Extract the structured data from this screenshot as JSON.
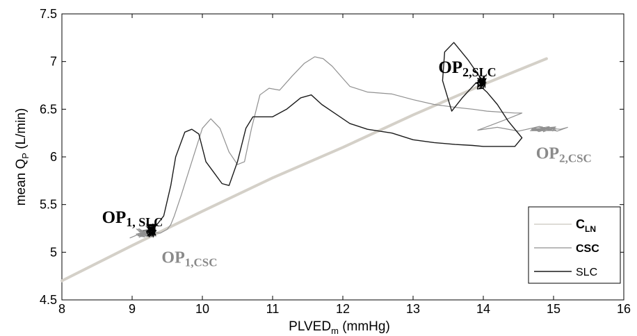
{
  "chart_data": {
    "type": "line",
    "xlabel": "PLVEDm (mmHg)",
    "xlabel_main": "PLVED",
    "xlabel_sub": "m",
    "xlabel_unit": " (mmHg)",
    "ylabel": "mean QP (L/min)",
    "ylabel_main": "mean Q",
    "ylabel_sub": "P",
    "ylabel_unit": " (L/min)",
    "xlim": [
      8,
      16
    ],
    "ylim": [
      4.5,
      7.5
    ],
    "x_ticks": [
      "8",
      "9",
      "10",
      "11",
      "12",
      "13",
      "14",
      "15",
      "16"
    ],
    "y_ticks": [
      "4.5",
      "5",
      "5.5",
      "6",
      "6.5",
      "7",
      "7.5"
    ],
    "grid": false,
    "legend_position": "bottom-right",
    "series": [
      {
        "name": "CLN",
        "name_main": "C",
        "name_sub": "LN",
        "color": "#d4d0c8",
        "x": [
          8,
          9,
          10,
          11,
          12,
          13,
          14,
          14.9
        ],
        "y": [
          4.7,
          5.07,
          5.43,
          5.78,
          6.1,
          6.44,
          6.76,
          7.03
        ]
      },
      {
        "name": "CSC",
        "color": "#909090",
        "x": [
          8.97,
          9.1,
          9.25,
          9.4,
          9.5,
          9.55,
          9.6,
          9.7,
          9.85,
          10.0,
          10.12,
          10.25,
          10.38,
          10.5,
          10.6,
          10.7,
          10.82,
          10.95,
          11.1,
          11.28,
          11.45,
          11.6,
          11.72,
          11.85,
          11.98,
          12.1,
          12.35,
          12.7,
          13.0,
          13.3,
          13.6,
          13.85,
          14.05,
          14.25,
          14.45,
          14.55,
          14.35,
          14.1,
          13.92,
          14.2,
          14.5,
          14.8,
          15.05,
          15.2,
          15.1,
          14.9,
          14.7
        ],
        "y": [
          5.15,
          5.19,
          5.21,
          5.2,
          5.24,
          5.29,
          5.38,
          5.6,
          5.95,
          6.3,
          6.4,
          6.3,
          6.05,
          5.92,
          5.95,
          6.3,
          6.65,
          6.72,
          6.7,
          6.85,
          6.98,
          7.05,
          7.03,
          6.95,
          6.84,
          6.74,
          6.68,
          6.66,
          6.6,
          6.55,
          6.52,
          6.5,
          6.48,
          6.47,
          6.46,
          6.46,
          6.4,
          6.33,
          6.28,
          6.31,
          6.27,
          6.32,
          6.27,
          6.31,
          6.29,
          6.3,
          6.28
        ]
      },
      {
        "name": "SLC",
        "color": "#1a1a1a",
        "x": [
          9.1,
          9.3,
          9.45,
          9.55,
          9.62,
          9.75,
          9.85,
          9.95,
          10.05,
          10.18,
          10.28,
          10.38,
          10.5,
          10.62,
          10.72,
          10.85,
          11.0,
          11.2,
          11.4,
          11.55,
          11.7,
          11.9,
          12.1,
          12.35,
          12.7,
          13.0,
          13.3,
          13.6,
          13.85,
          14.0,
          14.2,
          14.45,
          14.55,
          14.35,
          14.2,
          14.05,
          13.9,
          13.7,
          13.55,
          13.42,
          13.45,
          13.58,
          13.78,
          13.95,
          14.0
        ],
        "y": [
          5.22,
          5.24,
          5.38,
          5.7,
          6.0,
          6.26,
          6.29,
          6.24,
          5.95,
          5.82,
          5.72,
          5.7,
          5.95,
          6.3,
          6.42,
          6.42,
          6.42,
          6.5,
          6.62,
          6.65,
          6.55,
          6.45,
          6.35,
          6.29,
          6.25,
          6.18,
          6.15,
          6.13,
          6.12,
          6.11,
          6.11,
          6.11,
          6.2,
          6.38,
          6.55,
          6.68,
          6.78,
          6.62,
          6.48,
          6.8,
          7.1,
          7.2,
          7.02,
          6.84,
          6.78
        ]
      }
    ],
    "annotations": [
      {
        "main": "OP",
        "sub": "1, SLC",
        "x": 8.57,
        "y": 5.31,
        "color": "#000000",
        "size": 25,
        "sub_size": 18
      },
      {
        "main": "OP",
        "sub": "1,CSC",
        "x": 9.42,
        "y": 4.89,
        "color": "#8a8a8a",
        "size": 24,
        "sub_size": 17
      },
      {
        "main": "OP",
        "sub": "2,SLC",
        "x": 13.36,
        "y": 6.88,
        "color": "#000000",
        "size": 25,
        "sub_size": 18
      },
      {
        "main": "OP",
        "sub": "2,CSC",
        "x": 14.75,
        "y": 5.98,
        "color": "#8a8a8a",
        "size": 24,
        "sub_size": 17
      }
    ],
    "operating_points": [
      {
        "name": "OP1,SLC",
        "x": 9.27,
        "y": 5.23,
        "color": "#000000"
      },
      {
        "name": "OP2,SLC",
        "x": 13.97,
        "y": 6.78,
        "color": "#000000"
      }
    ]
  }
}
